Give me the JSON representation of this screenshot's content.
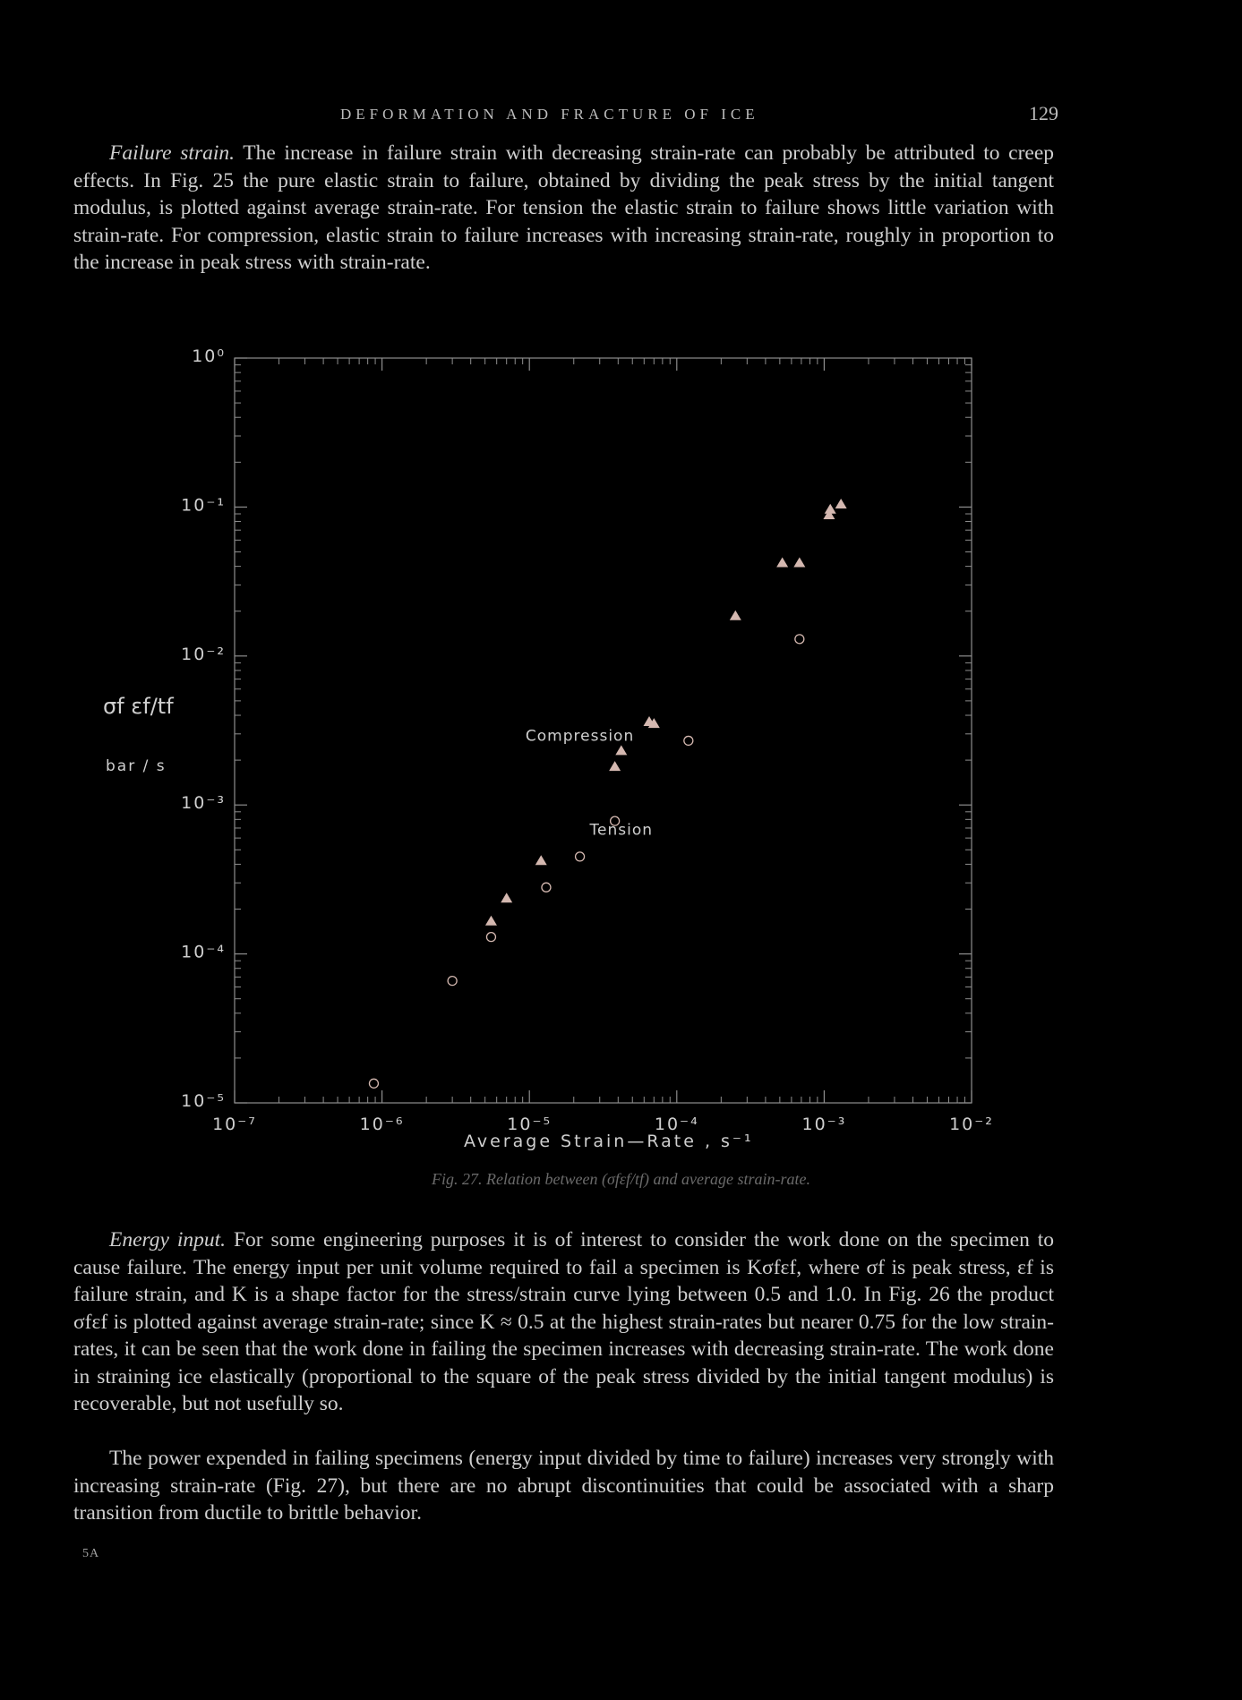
{
  "header": {
    "running_head": "DEFORMATION AND FRACTURE OF ICE",
    "page_number": "129"
  },
  "paragraphs": {
    "failure_strain_title": "Failure strain.",
    "failure_strain_body": "The increase in failure strain with decreasing strain-rate can probably be attributed to creep effects. In Fig. 25 the pure elastic strain to failure, obtained by dividing the peak stress by the initial tangent modulus, is plotted against average strain-rate. For tension the elastic strain to failure shows little variation with strain-rate. For compression, elastic strain to failure increases with increasing strain-rate, roughly in proportion to the increase in peak stress with strain-rate.",
    "energy_input_title": "Energy input.",
    "energy_input_body": "For some engineering purposes it is of interest to consider the work done on the specimen to cause failure. The energy input per unit volume required to fail a specimen is Kσfεf, where σf is peak stress, εf is failure strain, and K is a shape factor for the stress/strain curve lying between 0.5 and 1.0. In Fig. 26 the product σfεf is plotted against average strain-rate; since K ≈ 0.5 at the highest strain-rates but nearer 0.75 for the low strain-rates, it can be seen that the work done in failing the specimen increases with decreasing strain-rate. The work done in straining ice elastically (proportional to the square of the peak stress divided by the initial tangent modulus) is recoverable, but not usefully so.",
    "power_body": "The power expended in failing specimens (energy input divided by time to failure) increases very strongly with increasing strain-rate (Fig. 27), but there are no abrupt discontinuities that could be associated with a sharp transition from ductile to brittle behavior."
  },
  "footer": {
    "mark": "5A"
  },
  "figure": {
    "caption": "Fig. 27. Relation between (σfεf/tf) and average strain-rate.",
    "ylabel": "σf εf/tf",
    "yunit": "bar / s",
    "xlabel": "Average  Strain—Rate , s⁻¹"
  },
  "chart_data": {
    "type": "scatter",
    "title": "",
    "xlabel": "Average Strain—Rate , s⁻¹",
    "ylabel": "σf εf/tf  bar / s",
    "xscale": "log",
    "yscale": "log",
    "xlim": [
      1e-07,
      0.01
    ],
    "ylim": [
      1e-05,
      1
    ],
    "x_tick_labels": [
      "10⁻⁷",
      "10⁻⁶",
      "10⁻⁵",
      "10⁻⁴",
      "10⁻³",
      "10⁻²"
    ],
    "y_tick_labels": [
      "10⁻⁵",
      "10⁻⁴",
      "10⁻³",
      "10⁻²",
      "10⁻¹",
      "10⁰"
    ],
    "grid": false,
    "annotations": [
      {
        "text": "Compression",
        "x": 2.2e-05,
        "y": 0.0027
      },
      {
        "text": "Tension",
        "x": 4.2e-05,
        "y": 0.00063
      }
    ],
    "point_color": "#d4b8b0",
    "series": [
      {
        "name": "Compression",
        "marker": "filled-triangle",
        "points": [
          [
            5.5e-06,
            0.000165
          ],
          [
            7e-06,
            0.000235
          ],
          [
            1.2e-05,
            0.00042
          ],
          [
            3.8e-05,
            0.0018
          ],
          [
            4.2e-05,
            0.0023
          ],
          [
            6.5e-05,
            0.0036
          ],
          [
            7e-05,
            0.0035
          ],
          [
            0.00025,
            0.0185
          ],
          [
            0.00052,
            0.042
          ],
          [
            0.00068,
            0.042
          ],
          [
            0.00108,
            0.088
          ],
          [
            0.0011,
            0.096
          ],
          [
            0.0013,
            0.104
          ]
        ]
      },
      {
        "name": "Tension",
        "marker": "open-circle",
        "points": [
          [
            8.8e-07,
            1.35e-05
          ],
          [
            3e-06,
            6.6e-05
          ],
          [
            5.5e-06,
            0.00013
          ],
          [
            1.3e-05,
            0.00028
          ],
          [
            2.2e-05,
            0.00045
          ],
          [
            3.8e-05,
            0.00078
          ],
          [
            0.00012,
            0.0027
          ],
          [
            0.00068,
            0.013
          ]
        ]
      }
    ]
  }
}
